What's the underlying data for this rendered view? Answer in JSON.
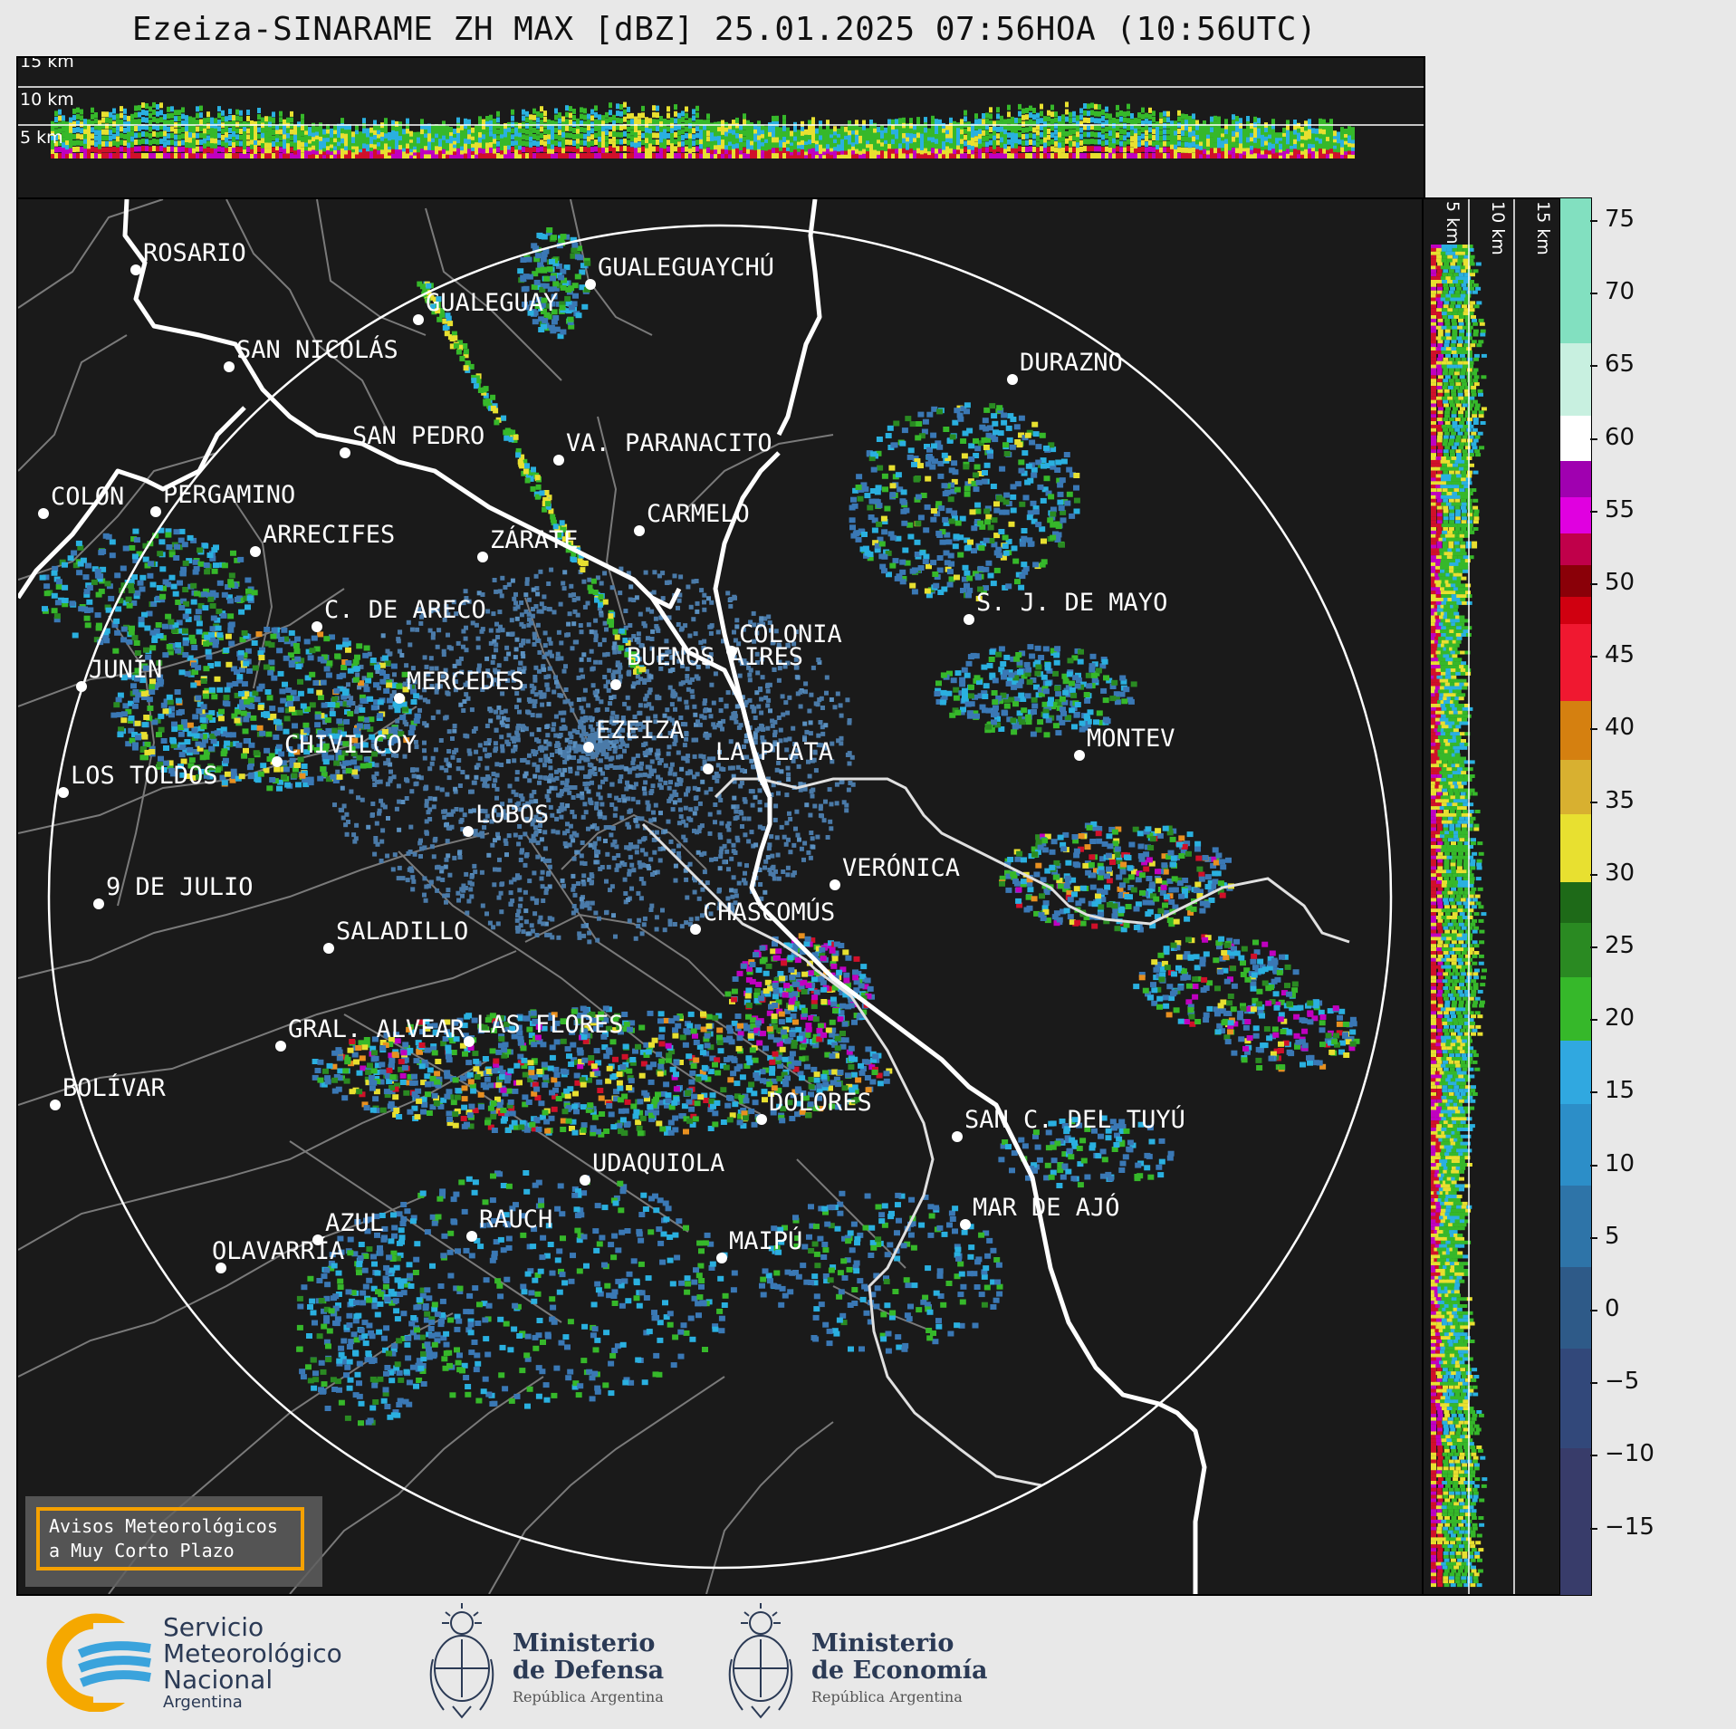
{
  "title": "Ezeiza-SINARAME ZH MAX [dBZ] 25.01.2025 07:56HOA (10:56UTC)",
  "top_panel": {
    "height_labels": [
      "15 km",
      "10 km",
      "5 km"
    ]
  },
  "side_panel": {
    "height_labels": [
      "5 km",
      "10 km",
      "15 km"
    ]
  },
  "colorbar": {
    "ticks": [
      "75",
      "70",
      "65",
      "60",
      "55",
      "50",
      "45",
      "40",
      "35",
      "30",
      "25",
      "20",
      "15",
      "10",
      "5",
      "0",
      "−5",
      "−10",
      "−15"
    ],
    "colors": {
      "dark_low": "#3b3f6b",
      "blue": "#3a78b5",
      "cyan": "#2ab0e0",
      "green": "#2fa82f",
      "yellow": "#e8e830",
      "orange": "#e89020",
      "red": "#d0102a",
      "magenta": "#c000c0",
      "white": "#ffffff",
      "mint": "#80e0c0"
    }
  },
  "cities": [
    {
      "name": "ROSARIO"
    },
    {
      "name": "GUALEGUAYCHÚ"
    },
    {
      "name": "GUALEGUAY"
    },
    {
      "name": "SAN NICOLÁS"
    },
    {
      "name": "DURAZNO"
    },
    {
      "name": "SAN PEDRO"
    },
    {
      "name": "VA. PARANACITO"
    },
    {
      "name": "COLON"
    },
    {
      "name": "PERGAMINO"
    },
    {
      "name": "CARMELO"
    },
    {
      "name": "ARRECIFES"
    },
    {
      "name": "ZÁRATE"
    },
    {
      "name": "S. J. DE MAYO"
    },
    {
      "name": "C. DE ARECO"
    },
    {
      "name": "COLONIA"
    },
    {
      "name": "JUNÍN"
    },
    {
      "name": "BUENOS AIRES"
    },
    {
      "name": "MERCEDES"
    },
    {
      "name": "MONTEV"
    },
    {
      "name": "EZEIZA"
    },
    {
      "name": "LA PLATA"
    },
    {
      "name": "CHIVILCOY"
    },
    {
      "name": "LOS TOLDOS"
    },
    {
      "name": "LOBOS"
    },
    {
      "name": "VERÓNICA"
    },
    {
      "name": "9 DE JULIO"
    },
    {
      "name": "CHASCOMÚS"
    },
    {
      "name": "SALADILLO"
    },
    {
      "name": "GRAL. ALVEAR"
    },
    {
      "name": "LAS FLORES"
    },
    {
      "name": "BOLÍVAR"
    },
    {
      "name": "DOLORES"
    },
    {
      "name": "SAN C. DEL TUYÚ"
    },
    {
      "name": "UDAQUIOLA"
    },
    {
      "name": "MAR DE AJÓ"
    },
    {
      "name": "AZUL"
    },
    {
      "name": "RAUCH"
    },
    {
      "name": "OLAVARRÍA"
    },
    {
      "name": "MAIPÚ"
    }
  ],
  "aviso": {
    "line1": "Avisos Meteorológicos",
    "line2": "a Muy Corto Plazo"
  },
  "footer": {
    "smn": {
      "line1": "Servicio",
      "line2": "Meteorológico",
      "line3": "Nacional",
      "line4": "Argentina"
    },
    "defensa": {
      "line1": "Ministerio",
      "line2": "de Defensa",
      "line3": "República Argentina"
    },
    "economia": {
      "line1": "Ministerio",
      "line2": "de Economía",
      "line3": "República Argentina"
    }
  }
}
